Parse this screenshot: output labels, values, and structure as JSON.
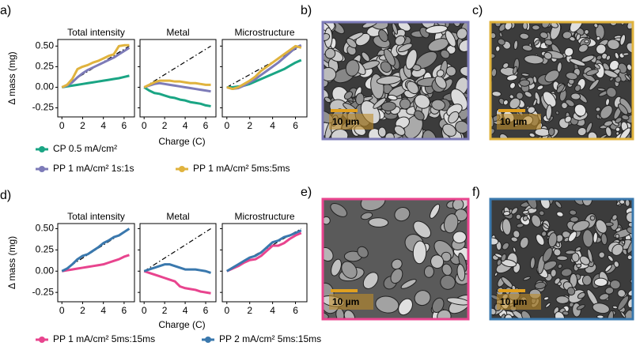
{
  "chart_data": [
    {
      "type": "line",
      "panel_label": "a)",
      "ylabel": "Δ mass (mg)",
      "xlabel": "Charge (C)",
      "xlim": [
        -0.4,
        7
      ],
      "xticks": [
        0,
        2,
        4,
        6
      ],
      "ylim": [
        -0.36,
        0.58
      ],
      "yticks": [
        -0.25,
        {
          "value": 0,
          "label": "0.00"
        },
        0.25,
        {
          "value": 0.5,
          "label": "0.50"
        }
      ],
      "x": [
        0,
        0.5,
        1,
        1.5,
        2,
        2.5,
        3,
        3.5,
        4,
        4.5,
        5,
        5.5,
        6,
        6.5
      ],
      "reference": {
        "x": [
          0,
          6.5
        ],
        "y": [
          0,
          0.5
        ]
      },
      "series": [
        {
          "name": "CP 0.5 mA/cm²",
          "color": "#1aa584"
        },
        {
          "name": "PP 1 mA/cm² 1s:1s",
          "color": "#7d7bb8"
        },
        {
          "name": "PP 1 mA/cm² 5ms:5ms",
          "color": "#e0b33e"
        }
      ],
      "facets": [
        {
          "title": "Total intensity",
          "values": [
            [
              0,
              0.01,
              0.02,
              0.03,
              0.04,
              0.05,
              0.06,
              0.07,
              0.08,
              0.09,
              0.1,
              0.11,
              0.125,
              0.14
            ],
            [
              0,
              0.02,
              0.06,
              0.12,
              0.17,
              0.21,
              0.24,
              0.27,
              0.3,
              0.33,
              0.36,
              0.4,
              0.44,
              0.48
            ],
            [
              0,
              0.03,
              0.1,
              0.22,
              0.25,
              0.27,
              0.3,
              0.32,
              0.35,
              0.38,
              0.4,
              0.5,
              0.51,
              0.51
            ]
          ]
        },
        {
          "title": "Metal",
          "values": [
            [
              0,
              -0.04,
              -0.07,
              -0.08,
              -0.1,
              -0.12,
              -0.13,
              -0.15,
              -0.16,
              -0.18,
              -0.19,
              -0.2,
              -0.22,
              -0.23
            ],
            [
              0,
              0.02,
              0.04,
              0.05,
              0.04,
              0.03,
              0.02,
              0.01,
              0,
              -0.01,
              -0.02,
              -0.03,
              -0.04,
              -0.05
            ],
            [
              0,
              0.03,
              0.06,
              0.08,
              0.08,
              0.08,
              0.07,
              0.07,
              0.06,
              0.05,
              0.05,
              0.04,
              0.03,
              0.03
            ]
          ]
        },
        {
          "title": "Microstructure",
          "values": [
            [
              0,
              0,
              0.01,
              0.02,
              0.04,
              0.07,
              0.1,
              0.13,
              0.16,
              0.19,
              0.22,
              0.26,
              0.3,
              0.33
            ],
            [
              0,
              -0.02,
              -0.01,
              0.02,
              0.06,
              0.1,
              0.15,
              0.2,
              0.25,
              0.3,
              0.36,
              0.42,
              0.48,
              0.51
            ],
            [
              0,
              -0.02,
              0,
              0.04,
              0.08,
              0.13,
              0.2,
              0.25,
              0.3,
              0.35,
              0.4,
              0.45,
              0.5,
              0.48
            ]
          ]
        }
      ]
    },
    {
      "type": "line",
      "panel_label": "d)",
      "ylabel": "Δ mass (mg)",
      "xlabel": "Charge (C)",
      "xlim": [
        -0.4,
        7
      ],
      "xticks": [
        0,
        2,
        4,
        6
      ],
      "ylim": [
        -0.36,
        0.56
      ],
      "yticks": [
        -0.25,
        {
          "value": 0,
          "label": "0.00"
        },
        0.25,
        {
          "value": 0.5,
          "label": "0.50"
        }
      ],
      "x": [
        0,
        0.5,
        1,
        1.5,
        2,
        2.5,
        3,
        3.5,
        4,
        4.5,
        5,
        5.5,
        6,
        6.5
      ],
      "reference": {
        "x": [
          0,
          6.5
        ],
        "y": [
          0,
          0.5
        ]
      },
      "series": [
        {
          "name": "PP 1 mA/cm² 5ms:15ms",
          "color": "#e8448e"
        },
        {
          "name": "PP 2 mA/cm² 5ms:15ms",
          "color": "#3a78ad"
        }
      ],
      "facets": [
        {
          "title": "Total intensity",
          "values": [
            [
              0,
              0.01,
              0.02,
              0.03,
              0.04,
              0.05,
              0.06,
              0.07,
              0.08,
              0.1,
              0.12,
              0.14,
              0.17,
              0.19
            ],
            [
              0,
              0.03,
              0.08,
              0.14,
              0.18,
              0.2,
              0.24,
              0.28,
              0.33,
              0.36,
              0.4,
              0.42,
              0.46,
              0.5
            ]
          ]
        },
        {
          "title": "Metal",
          "values": [
            [
              0,
              -0.02,
              -0.04,
              -0.06,
              -0.08,
              -0.1,
              -0.12,
              -0.18,
              -0.2,
              -0.21,
              -0.22,
              -0.24,
              -0.25,
              -0.26
            ],
            [
              0,
              0.02,
              0.04,
              0.06,
              0.08,
              0.08,
              0.06,
              0.04,
              0.02,
              0.02,
              0.02,
              0.01,
              0,
              -0.02
            ]
          ]
        },
        {
          "title": "Microstructure",
          "values": [
            [
              0,
              0.03,
              0.06,
              0.1,
              0.13,
              0.14,
              0.18,
              0.24,
              0.3,
              0.3,
              0.33,
              0.38,
              0.42,
              0.45
            ],
            [
              0,
              0.04,
              0.08,
              0.12,
              0.16,
              0.18,
              0.22,
              0.28,
              0.34,
              0.36,
              0.4,
              0.42,
              0.45,
              0.48
            ]
          ]
        }
      ]
    }
  ],
  "images": [
    {
      "label": "b)",
      "scale_bar": "10 µm",
      "border": "#7d7bb8"
    },
    {
      "label": "c)",
      "scale_bar": "10 µm",
      "border": "#e0b33e"
    },
    {
      "label": "e)",
      "scale_bar": "10 µm",
      "border": "#e8448e"
    },
    {
      "label": "f)",
      "scale_bar": "10 µm",
      "border": "#3a78ad"
    }
  ]
}
